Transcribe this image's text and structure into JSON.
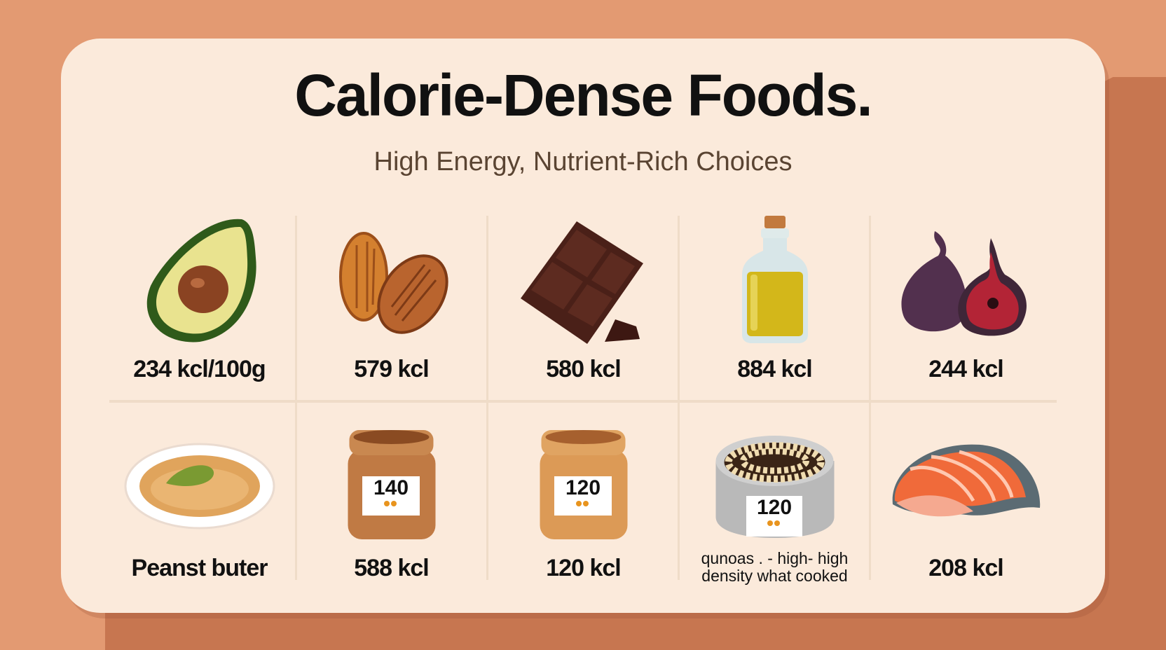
{
  "header": {
    "title": "Calorie-Dense Foods.",
    "subtitle": "High Energy, Nutrient-Rich Choices"
  },
  "foods": [
    {
      "icon": "avocado-icon",
      "label": "234 kcl/100g"
    },
    {
      "icon": "almonds-icon",
      "label": "579 kcl"
    },
    {
      "icon": "dark-chocolate-icon",
      "label": "580 kcl"
    },
    {
      "icon": "olive-oil-bottle-icon",
      "label": "884 kcl"
    },
    {
      "icon": "figs-icon",
      "label": "244 kcl"
    },
    {
      "icon": "peanut-butter-bowl-icon",
      "label": "Peanst buter"
    },
    {
      "icon": "nut-butter-jar-icon",
      "label": "588 kcl",
      "badge": "140"
    },
    {
      "icon": "nut-butter-jar-icon",
      "label": "120 kcl",
      "badge": "120"
    },
    {
      "icon": "quinoa-bowl-icon",
      "label": "qunoas . - high- high density what cooked",
      "badge": "120"
    },
    {
      "icon": "salmon-icon",
      "label": "208 kcl"
    }
  ],
  "colors": {
    "background": "#e39a72",
    "card": "#fbeadb",
    "text": "#111111",
    "subtitle": "#5a4432"
  }
}
